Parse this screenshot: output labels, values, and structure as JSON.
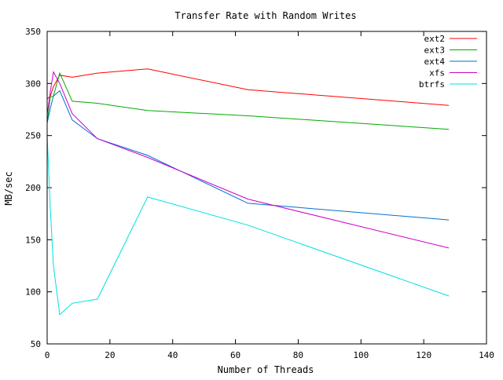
{
  "chart_data": {
    "type": "line",
    "title": "Transfer Rate with Random Writes",
    "xlabel": "Number of Threads",
    "ylabel": "MB/sec",
    "xlim": [
      0,
      140
    ],
    "ylim": [
      50,
      350
    ],
    "xticks": [
      0,
      20,
      40,
      60,
      80,
      100,
      120,
      140
    ],
    "yticks": [
      50,
      100,
      150,
      200,
      250,
      300,
      350
    ],
    "grid": false,
    "legend_position": "top-right",
    "series": [
      {
        "name": "ext2",
        "color": "#ff0000",
        "x": [
          0,
          1,
          2,
          4,
          8,
          16,
          32,
          64,
          128
        ],
        "y": [
          285,
          288,
          297,
          308,
          306,
          310,
          314,
          294,
          279
        ]
      },
      {
        "name": "ext3",
        "color": "#00aa00",
        "x": [
          0,
          1,
          2,
          4,
          8,
          16,
          32,
          64,
          128
        ],
        "y": [
          262,
          287,
          288,
          310,
          283,
          281,
          274,
          269,
          256
        ]
      },
      {
        "name": "ext4",
        "color": "#0070d0",
        "x": [
          0,
          1,
          2,
          4,
          8,
          16,
          32,
          64,
          128
        ],
        "y": [
          262,
          276,
          288,
          293,
          265,
          247,
          231,
          185,
          169
        ]
      },
      {
        "name": "xfs",
        "color": "#cc00cc",
        "x": [
          0,
          1,
          2,
          4,
          8,
          16,
          32,
          64,
          128
        ],
        "y": [
          270,
          292,
          311,
          300,
          271,
          247,
          229,
          189,
          142
        ]
      },
      {
        "name": "btrfs",
        "color": "#00e0e0",
        "x": [
          0,
          1,
          2,
          4,
          8,
          16,
          32,
          64,
          128
        ],
        "y": [
          250,
          180,
          125,
          78,
          89,
          93,
          191,
          164,
          96
        ]
      }
    ]
  }
}
